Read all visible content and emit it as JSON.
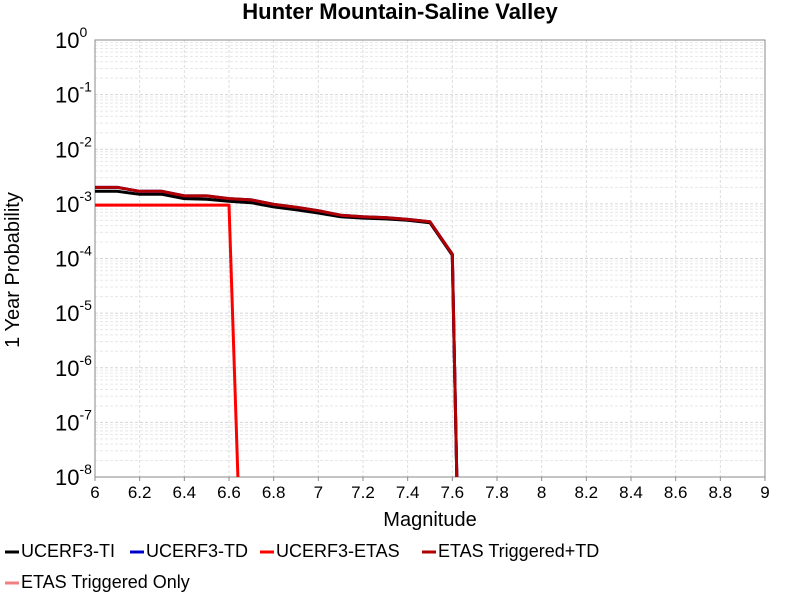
{
  "chart_data": {
    "type": "line",
    "title": "Hunter Mountain-Saline Valley",
    "xlabel": "Magnitude",
    "ylabel": "1 Year Probability",
    "xlim": [
      6,
      9
    ],
    "ylim": [
      1e-08,
      1
    ],
    "y_scale": "log",
    "grid": true,
    "legend_position": "bottom",
    "x_ticks": [
      "6",
      "6.2",
      "6.4",
      "6.6",
      "6.8",
      "7",
      "7.2",
      "7.4",
      "7.6",
      "7.8",
      "8",
      "8.2",
      "8.4",
      "8.6",
      "8.8",
      "9"
    ],
    "y_ticks": [
      {
        "base": "10",
        "exp": "0"
      },
      {
        "base": "10",
        "exp": "-1"
      },
      {
        "base": "10",
        "exp": "-2"
      },
      {
        "base": "10",
        "exp": "-3"
      },
      {
        "base": "10",
        "exp": "-4"
      },
      {
        "base": "10",
        "exp": "-5"
      },
      {
        "base": "10",
        "exp": "-6"
      },
      {
        "base": "10",
        "exp": "-7"
      },
      {
        "base": "10",
        "exp": "-8"
      }
    ],
    "series": [
      {
        "name": "UCERF3-TI",
        "color": "#000000",
        "x": [
          6.0,
          6.1,
          6.2,
          6.3,
          6.4,
          6.5,
          6.6,
          6.7,
          6.8,
          6.9,
          7.0,
          7.1,
          7.2,
          7.3,
          7.4,
          7.5,
          7.6,
          7.62
        ],
        "y": [
          0.0017,
          0.0017,
          0.0015,
          0.0015,
          0.00125,
          0.00122,
          0.00112,
          0.00105,
          0.00088,
          0.00078,
          0.00068,
          0.00058,
          0.00055,
          0.00053,
          0.0005,
          0.00045,
          0.000115,
          1e-08
        ]
      },
      {
        "name": "UCERF3-TD",
        "color": "#0000cc",
        "x": [
          6.0,
          6.1,
          6.2,
          6.3,
          6.4,
          6.5,
          6.6,
          6.7,
          6.8,
          6.9,
          7.0,
          7.1,
          7.2,
          7.3,
          7.4,
          7.5,
          7.6,
          7.62
        ],
        "y": [
          0.002,
          0.002,
          0.0017,
          0.0017,
          0.0014,
          0.0014,
          0.00125,
          0.00118,
          0.00098,
          0.00087,
          0.00075,
          0.00062,
          0.00058,
          0.00056,
          0.00052,
          0.00047,
          0.00012,
          1e-08
        ]
      },
      {
        "name": "UCERF3-ETAS",
        "color": "#ff0000",
        "x": [
          6.0,
          6.1,
          6.2,
          6.3,
          6.4,
          6.5,
          6.6,
          6.64
        ],
        "y": [
          0.00095,
          0.00095,
          0.00095,
          0.00095,
          0.00095,
          0.00095,
          0.00095,
          1e-08
        ]
      },
      {
        "name": "ETAS Triggered+TD",
        "color": "#b00000",
        "x": [
          6.0,
          6.1,
          6.2,
          6.3,
          6.4,
          6.5,
          6.6,
          6.7,
          6.8,
          6.9,
          7.0,
          7.1,
          7.2,
          7.3,
          7.4,
          7.5,
          7.6,
          7.62
        ],
        "y": [
          0.002,
          0.002,
          0.0017,
          0.0017,
          0.0014,
          0.0014,
          0.00125,
          0.00118,
          0.00098,
          0.00087,
          0.00075,
          0.00062,
          0.00058,
          0.00056,
          0.00052,
          0.00047,
          0.00012,
          1e-08
        ]
      },
      {
        "name": "ETAS Triggered Only",
        "color": "#f08080",
        "x": [],
        "y": []
      }
    ]
  }
}
